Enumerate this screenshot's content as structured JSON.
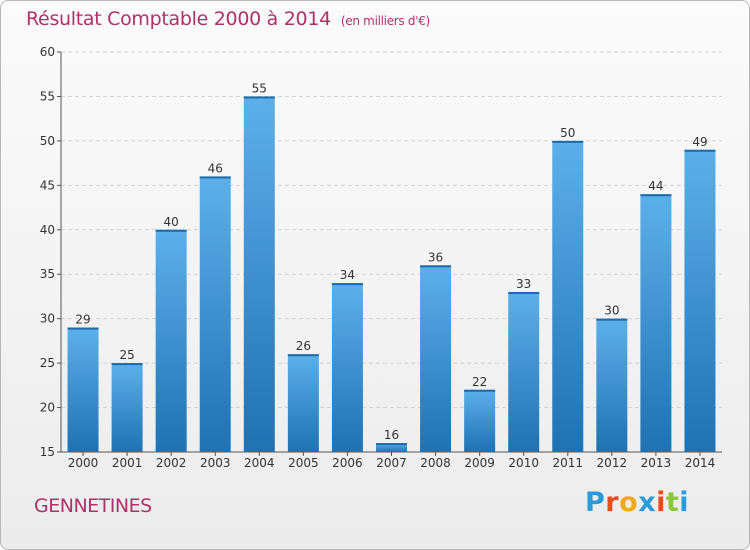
{
  "chart_data": {
    "type": "bar",
    "title": "Résultat Comptable 2000 à 2014",
    "subtitle": "(en milliers d'€)",
    "categories": [
      "2000",
      "2001",
      "2002",
      "2003",
      "2004",
      "2005",
      "2006",
      "2007",
      "2008",
      "2009",
      "2010",
      "2011",
      "2012",
      "2013",
      "2014"
    ],
    "values": [
      29,
      25,
      40,
      46,
      55,
      26,
      34,
      16,
      36,
      22,
      33,
      50,
      30,
      44,
      49
    ],
    "ylim": [
      15,
      60
    ],
    "yticks": [
      15,
      20,
      25,
      30,
      35,
      40,
      45,
      50,
      55,
      60
    ],
    "grid": true,
    "colors": {
      "bar_light": "#5aace6",
      "bar_dark": "#2277b8",
      "title": "#b0306a"
    }
  },
  "place_name": "GENNETINES",
  "logo": {
    "letters": [
      "P",
      "r",
      "o",
      "x",
      "i",
      "t",
      "i"
    ]
  }
}
